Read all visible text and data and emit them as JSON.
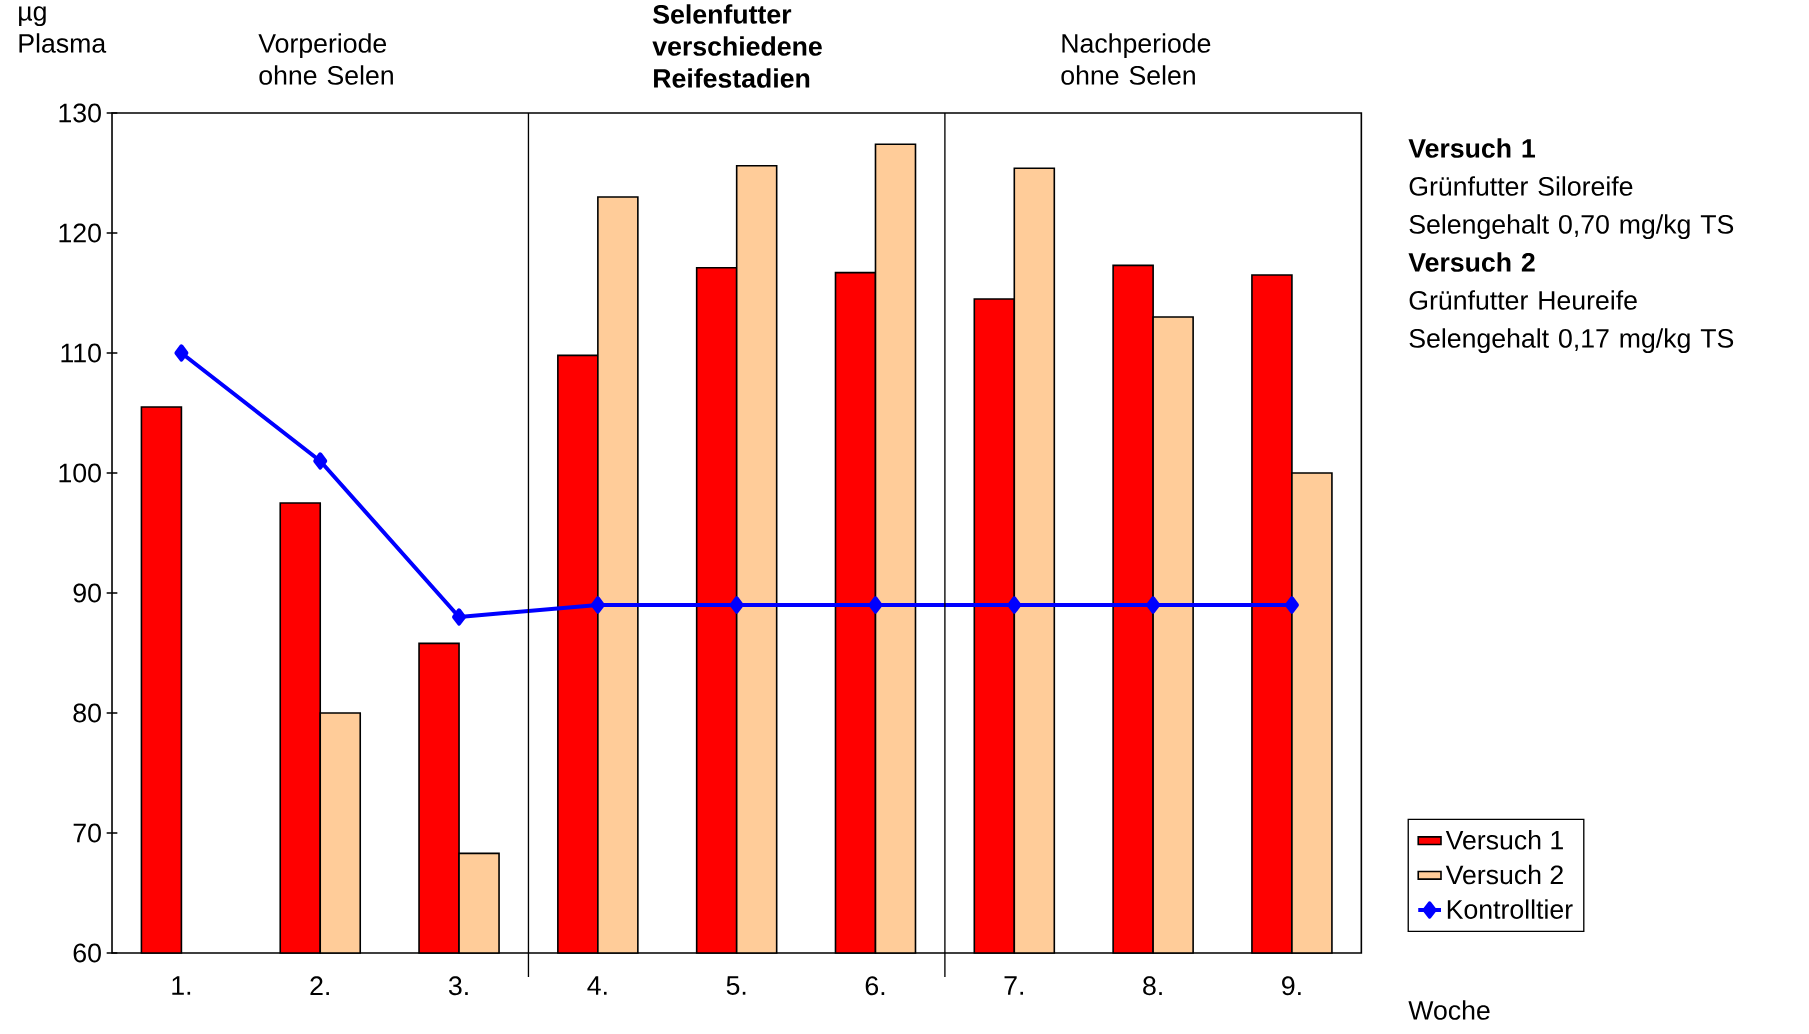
{
  "chart_data": {
    "type": "bar",
    "ylabel": "µg Plasma",
    "xlabel": "Woche",
    "categories": [
      "1.",
      "2.",
      "3.",
      "4.",
      "5.",
      "6.",
      "7.",
      "8.",
      "9."
    ],
    "ylim": [
      60,
      130
    ],
    "yticks": [
      60,
      70,
      80,
      90,
      100,
      110,
      120,
      130
    ],
    "grid": false,
    "legend": "bottom right",
    "marker": "diamond",
    "line_style": "solid",
    "series": [
      {
        "name": "Versuch 1",
        "color": "#ff0000",
        "values": [
          105.5,
          97.5,
          85.8,
          109.8,
          117.1,
          116.7,
          114.5,
          117.3,
          116.5
        ]
      },
      {
        "name": "Versuch 2",
        "color": "#ffcc99",
        "values": [
          null,
          80,
          68.3,
          123,
          125.6,
          127.4,
          125.4,
          113,
          100
        ]
      },
      {
        "name": "Kontrolltier",
        "type": "line",
        "color": "#0000ff",
        "values": [
          110,
          101,
          88,
          89,
          89,
          89,
          89,
          89,
          89
        ]
      }
    ],
    "annotations": [
      "Vorperiode ohne Selen",
      "Selenfutter verschiedene Reifestadien",
      "Nachperiode ohne Selen",
      "Versuch 1",
      "Grünfutter Siloreife",
      "Selengehalt 0,70 mg/kg TS",
      "Versuch 2",
      "Grünfutter Heureife",
      "Selengehalt 0,17 mg/kg TS"
    ]
  }
}
